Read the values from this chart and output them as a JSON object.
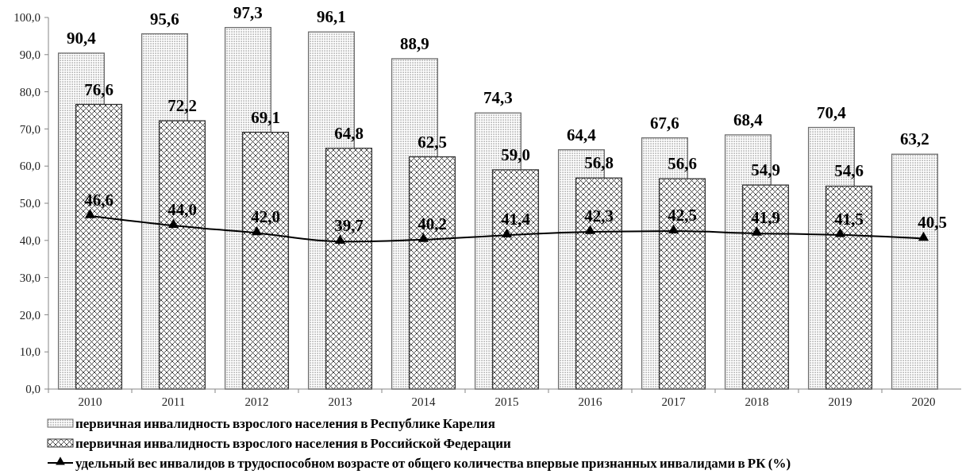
{
  "chart_data": {
    "type": "bar",
    "categories": [
      "2010",
      "2011",
      "2012",
      "2013",
      "2014",
      "2015",
      "2016",
      "2017",
      "2018",
      "2019",
      "2020"
    ],
    "series": [
      {
        "name": "первичная инвалидность взрослого населения в Республике Карелия",
        "color": "#6e6e6e",
        "values": [
          90.4,
          95.6,
          97.3,
          96.1,
          88.9,
          74.3,
          64.4,
          67.6,
          68.4,
          70.4,
          63.2
        ],
        "value_labels": [
          "90,4",
          "95,6",
          "97,3",
          "96,1",
          "88,9",
          "74,3",
          "64,4",
          "67,6",
          "68,4",
          "70,4",
          "63,2"
        ]
      },
      {
        "name": "первичная инвалидность взрослого населения в Российской Федерации",
        "color": "#333333",
        "values": [
          76.6,
          72.2,
          69.1,
          64.8,
          62.5,
          59.0,
          56.8,
          56.6,
          54.9,
          54.6,
          null
        ],
        "value_labels": [
          "76,6",
          "72,2",
          "69,1",
          "64,8",
          "62,5",
          "59,0",
          "56,8",
          "56,6",
          "54,9",
          "54,6",
          null
        ]
      },
      {
        "name": "удельный вес инвалидов в трудоспособном возрасте от общего количества впервые признанных инвалидами в РК (%)",
        "type": "line",
        "color": "#000000",
        "marker": "triangle",
        "values": [
          46.6,
          44.0,
          42.0,
          39.7,
          40.2,
          41.4,
          42.3,
          42.5,
          41.9,
          41.5,
          40.5
        ],
        "value_labels": [
          "46,6",
          "44,0",
          "42,0",
          "39,7",
          "40,2",
          "41,4",
          "42,3",
          "42,5",
          "41,9",
          "41,5",
          "40,5"
        ]
      }
    ],
    "ylim": [
      0,
      100
    ],
    "yticks": [
      {
        "value": 0,
        "label": "0,0"
      },
      {
        "value": 10,
        "label": "10,0"
      },
      {
        "value": 20,
        "label": "20,0"
      },
      {
        "value": 30,
        "label": "30,0"
      },
      {
        "value": 40,
        "label": "40,0"
      },
      {
        "value": 50,
        "label": "50,0"
      },
      {
        "value": 60,
        "label": "60,0"
      },
      {
        "value": 70,
        "label": "70,0"
      },
      {
        "value": 80,
        "label": "80,0"
      },
      {
        "value": 90,
        "label": "90,0"
      },
      {
        "value": 100,
        "label": "100,0"
      }
    ],
    "legend": "bottom"
  }
}
